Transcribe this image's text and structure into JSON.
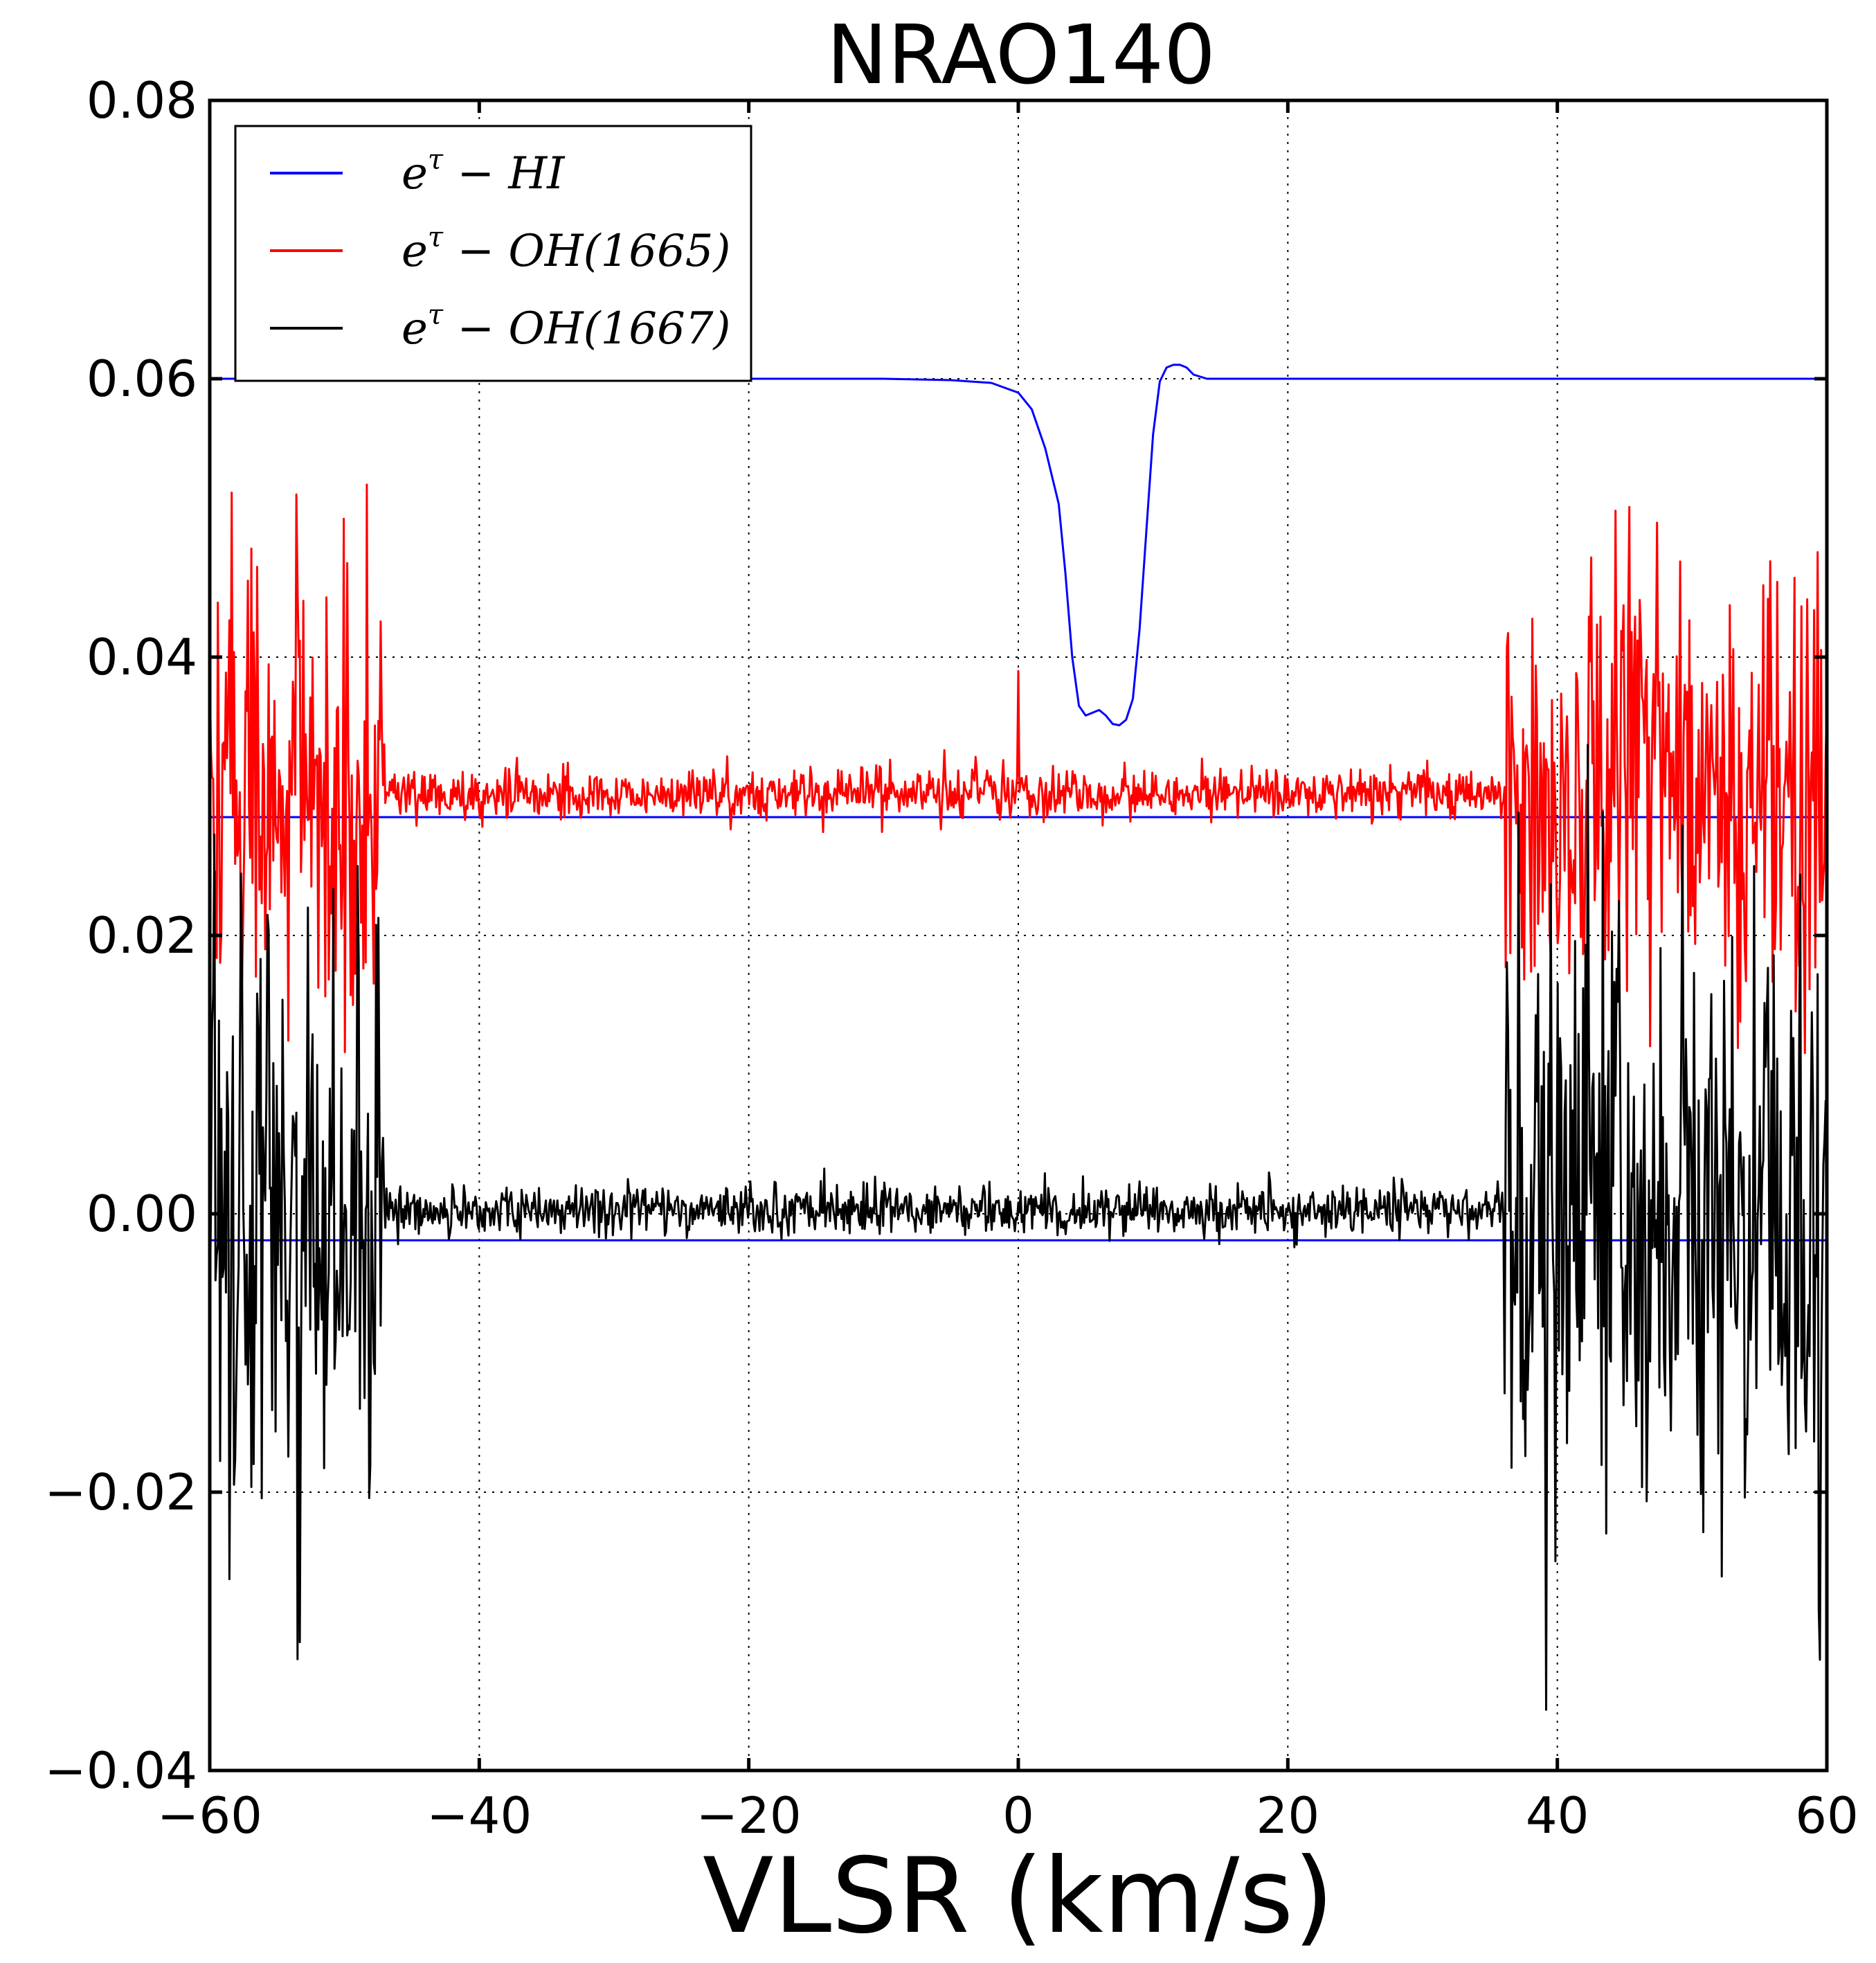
{
  "chart_data": {
    "type": "line",
    "title": "NRAO140",
    "xlabel": "VLSR (km/s)",
    "ylabel": "",
    "xlim": [
      -60,
      60
    ],
    "ylim": [
      -0.04,
      0.08
    ],
    "grid": true,
    "legend_position": "top-left",
    "xticks": [
      -60,
      -40,
      -20,
      0,
      20,
      40,
      60
    ],
    "xtick_labels": [
      "−60",
      "−40",
      "−20",
      "0",
      "20",
      "40",
      "60"
    ],
    "yticks": [
      -0.04,
      -0.02,
      0.0,
      0.02,
      0.04,
      0.06,
      0.08
    ],
    "ytick_labels": [
      "−0.04",
      "−0.02",
      "0.00",
      "0.02",
      "0.04",
      "0.06",
      "0.08"
    ],
    "series": [
      {
        "name": "e^τ − HI",
        "legend_base": "e",
        "legend_sup": "τ",
        "legend_rest": " − HI",
        "color": "#0000ff",
        "x": [
          -60,
          -10,
          -5,
          -2,
          0,
          1,
          2,
          3,
          3.5,
          4,
          4.5,
          5,
          5.5,
          6,
          6.5,
          7,
          7.5,
          8,
          8.5,
          9,
          9.5,
          10,
          10.5,
          11,
          11.5,
          12,
          12.5,
          13,
          14,
          16,
          60
        ],
        "y": [
          0.06,
          0.06,
          0.0599,
          0.0597,
          0.059,
          0.0578,
          0.055,
          0.051,
          0.046,
          0.04,
          0.0365,
          0.0358,
          0.036,
          0.0362,
          0.0358,
          0.0352,
          0.0351,
          0.0355,
          0.037,
          0.042,
          0.049,
          0.056,
          0.0598,
          0.0608,
          0.061,
          0.061,
          0.0608,
          0.0603,
          0.06,
          0.06,
          0.06
        ]
      },
      {
        "name": "e^τ − OH(1665)",
        "legend_base": "e",
        "legend_sup": "τ",
        "legend_rest": " − OH(1665)",
        "color": "#ff0000",
        "baseline": 0.0302,
        "noise_sigma_quiet": 0.0009,
        "noise_sigma_edges": 0.008,
        "quiet_range": [
          -47,
          36
        ],
        "spike": {
          "x": 0.0,
          "y": 0.039
        },
        "samples": 1400
      },
      {
        "name": "e^τ − OH(1667)",
        "legend_base": "e",
        "legend_sup": "τ",
        "legend_rest": " − OH(1667)",
        "color": "#000000",
        "baseline": 0.0003,
        "noise_sigma_quiet": 0.0009,
        "noise_sigma_edges": 0.011,
        "quiet_range": [
          -47,
          36
        ],
        "spike": {
          "x": -53.5,
          "y": -0.032
        },
        "samples": 1400
      }
    ],
    "reference_lines": [
      {
        "name": "reference-line-upper",
        "y": 0.0285,
        "color": "#0000ff"
      },
      {
        "name": "reference-line-lower",
        "y": -0.0019,
        "color": "#0000ff"
      }
    ]
  }
}
